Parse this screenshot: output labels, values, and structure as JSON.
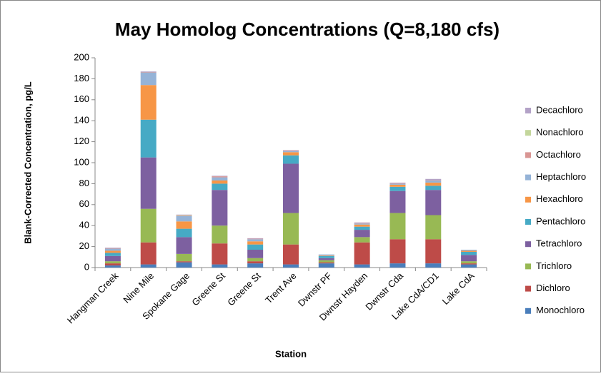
{
  "chart_data": {
    "type": "stacked_bar",
    "title": "May Homolog Concentrations (Q=8,180 cfs)",
    "x_label": "Station",
    "y_label": "Blank-Corrected Concentration, pg/L",
    "categories": [
      "Hangman Creek",
      "Nine Mile",
      "Spokane Gage",
      "Greene St",
      "Greene St",
      "Trent Ave",
      "Dwnstr PF",
      "Dwnstr Hayden",
      "Dwnstr Cda",
      "Lake CdA/CD1",
      "Lake CdA"
    ],
    "series": [
      {
        "name": "Monochloro",
        "color": "#4a7ebb",
        "values": [
          2,
          3,
          5,
          3,
          4,
          3,
          4,
          3,
          4,
          4,
          3
        ]
      },
      {
        "name": "Dichloro",
        "color": "#be4b48",
        "values": [
          2,
          21,
          1,
          20,
          2,
          19,
          1,
          21,
          23,
          23,
          1
        ]
      },
      {
        "name": "Trichloro",
        "color": "#98b954",
        "values": [
          2,
          32,
          7,
          17,
          3,
          30,
          2,
          5,
          25,
          23,
          2
        ]
      },
      {
        "name": "Tetrachloro",
        "color": "#7d60a0",
        "values": [
          5,
          49,
          16,
          34,
          8,
          47,
          2,
          7,
          21,
          24,
          6
        ]
      },
      {
        "name": "Pentachloro",
        "color": "#46aac5",
        "values": [
          3,
          36,
          8,
          6,
          5,
          8,
          2,
          3,
          4,
          4,
          3
        ]
      },
      {
        "name": "Hexachloro",
        "color": "#f79646",
        "values": [
          2,
          33,
          7,
          3,
          3,
          3,
          0.5,
          2,
          2,
          3,
          1
        ]
      },
      {
        "name": "Heptachloro",
        "color": "#95b3d7",
        "values": [
          2,
          12,
          5,
          3,
          2,
          1,
          1,
          1,
          1,
          2,
          1
        ]
      },
      {
        "name": "Octachloro",
        "color": "#d99694",
        "values": [
          0.5,
          0.5,
          0.5,
          1,
          0.5,
          0.5,
          0,
          0.5,
          0.5,
          0.5,
          0
        ]
      },
      {
        "name": "Nonachloro",
        "color": "#c3d69b",
        "values": [
          0,
          0,
          0.5,
          0,
          0,
          0,
          0,
          0,
          0,
          0,
          0
        ]
      },
      {
        "name": "Decachloro",
        "color": "#b3a2c7",
        "values": [
          0.5,
          0.5,
          0.5,
          0.5,
          0.5,
          0.5,
          0,
          0.5,
          0.5,
          1,
          0
        ]
      }
    ],
    "ylim": [
      0,
      200
    ],
    "yticks": [
      0,
      20,
      40,
      60,
      80,
      100,
      120,
      140,
      160,
      180,
      200
    ],
    "legend": "right"
  }
}
